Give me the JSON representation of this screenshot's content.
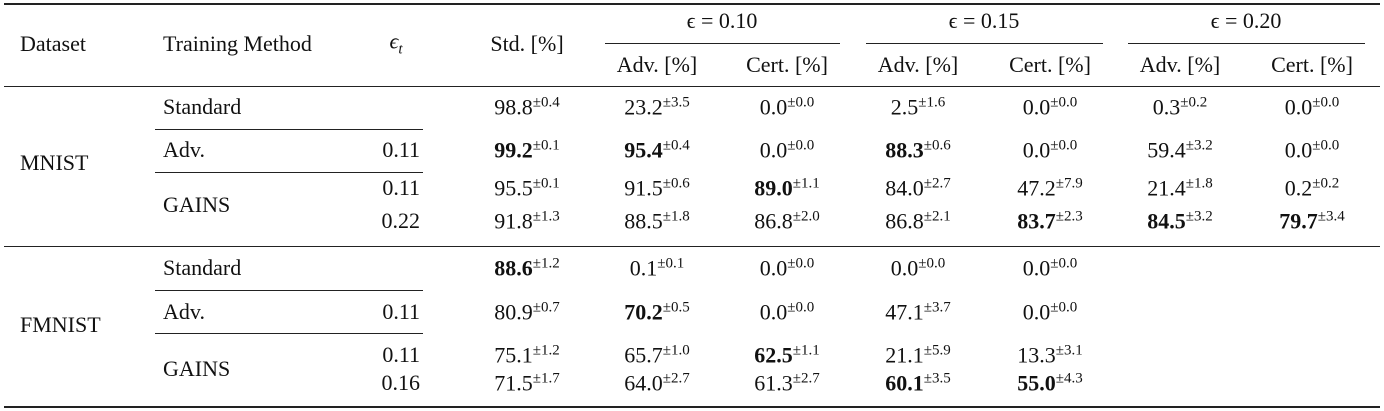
{
  "header": {
    "dataset": "Dataset",
    "method": "Training Method",
    "eps_t": {
      "symbol": "ϵ",
      "sub": "t"
    },
    "std": "Std. [%]",
    "groups": [
      "ϵ = 0.10",
      "ϵ = 0.15",
      "ϵ = 0.20"
    ],
    "subcolumns": [
      "Adv. [%]",
      "Cert. [%]",
      "Adv. [%]",
      "Cert. [%]",
      "Adv. [%]",
      "Cert. [%]"
    ]
  },
  "datasets": [
    {
      "name": "MNIST",
      "methods": [
        {
          "name": "Standard",
          "rows": [
            {
              "cells": [
                {
                  "value": "98.8",
                  "pm": "±0.4"
                },
                {
                  "value": "23.2",
                  "pm": "±3.5"
                },
                {
                  "value": "0.0",
                  "pm": "±0.0"
                },
                {
                  "value": "2.5",
                  "pm": "±1.6"
                },
                {
                  "value": "0.0",
                  "pm": "±0.0"
                },
                {
                  "value": "0.3",
                  "pm": "±0.2"
                },
                {
                  "value": "0.0",
                  "pm": "±0.0"
                }
              ]
            }
          ]
        },
        {
          "name": "Adv.",
          "rows": [
            {
              "eps_t": "0.11",
              "cells": [
                {
                  "value": "99.2",
                  "pm": "±0.1",
                  "bold": true
                },
                {
                  "value": "95.4",
                  "pm": "±0.4",
                  "bold": true
                },
                {
                  "value": "0.0",
                  "pm": "±0.0"
                },
                {
                  "value": "88.3",
                  "pm": "±0.6",
                  "bold": true
                },
                {
                  "value": "0.0",
                  "pm": "±0.0"
                },
                {
                  "value": "59.4",
                  "pm": "±3.2"
                },
                {
                  "value": "0.0",
                  "pm": "±0.0"
                }
              ]
            }
          ]
        },
        {
          "name": "GAINS",
          "rows": [
            {
              "eps_t": "0.11",
              "cells": [
                {
                  "value": "95.5",
                  "pm": "±0.1"
                },
                {
                  "value": "91.5",
                  "pm": "±0.6"
                },
                {
                  "value": "89.0",
                  "pm": "±1.1",
                  "bold": true
                },
                {
                  "value": "84.0",
                  "pm": "±2.7"
                },
                {
                  "value": "47.2",
                  "pm": "±7.9"
                },
                {
                  "value": "21.4",
                  "pm": "±1.8"
                },
                {
                  "value": "0.2",
                  "pm": "±0.2"
                }
              ]
            },
            {
              "eps_t": "0.22",
              "cells": [
                {
                  "value": "91.8",
                  "pm": "±1.3"
                },
                {
                  "value": "88.5",
                  "pm": "±1.8"
                },
                {
                  "value": "86.8",
                  "pm": "±2.0"
                },
                {
                  "value": "86.8",
                  "pm": "±2.1"
                },
                {
                  "value": "83.7",
                  "pm": "±2.3",
                  "bold": true
                },
                {
                  "value": "84.5",
                  "pm": "±3.2",
                  "bold": true
                },
                {
                  "value": "79.7",
                  "pm": "±3.4",
                  "bold": true
                }
              ]
            }
          ]
        }
      ]
    },
    {
      "name": "FMNIST",
      "methods": [
        {
          "name": "Standard",
          "rows": [
            {
              "cells": [
                {
                  "value": "88.6",
                  "pm": "±1.2",
                  "bold": true
                },
                {
                  "value": "0.1",
                  "pm": "±0.1"
                },
                {
                  "value": "0.0",
                  "pm": "±0.0"
                },
                {
                  "value": "0.0",
                  "pm": "±0.0"
                },
                {
                  "value": "0.0",
                  "pm": "±0.0"
                }
              ]
            }
          ]
        },
        {
          "name": "Adv.",
          "rows": [
            {
              "eps_t": "0.11",
              "cells": [
                {
                  "value": "80.9",
                  "pm": "±0.7"
                },
                {
                  "value": "70.2",
                  "pm": "±0.5",
                  "bold": true
                },
                {
                  "value": "0.0",
                  "pm": "±0.0"
                },
                {
                  "value": "47.1",
                  "pm": "±3.7"
                },
                {
                  "value": "0.0",
                  "pm": "±0.0"
                }
              ]
            }
          ]
        },
        {
          "name": "GAINS",
          "rows": [
            {
              "eps_t": "0.11",
              "cells": [
                {
                  "value": "75.1",
                  "pm": "±1.2"
                },
                {
                  "value": "65.7",
                  "pm": "±1.0"
                },
                {
                  "value": "62.5",
                  "pm": "±1.1",
                  "bold": true
                },
                {
                  "value": "21.1",
                  "pm": "±5.9"
                },
                {
                  "value": "13.3",
                  "pm": "±3.1"
                }
              ]
            },
            {
              "eps_t": "0.16",
              "cells": [
                {
                  "value": "71.5",
                  "pm": "±1.7"
                },
                {
                  "value": "64.0",
                  "pm": "±2.7"
                },
                {
                  "value": "61.3",
                  "pm": "±2.7"
                },
                {
                  "value": "60.1",
                  "pm": "±3.5",
                  "bold": true
                },
                {
                  "value": "55.0",
                  "pm": "±4.3",
                  "bold": true
                }
              ]
            }
          ]
        }
      ]
    }
  ]
}
